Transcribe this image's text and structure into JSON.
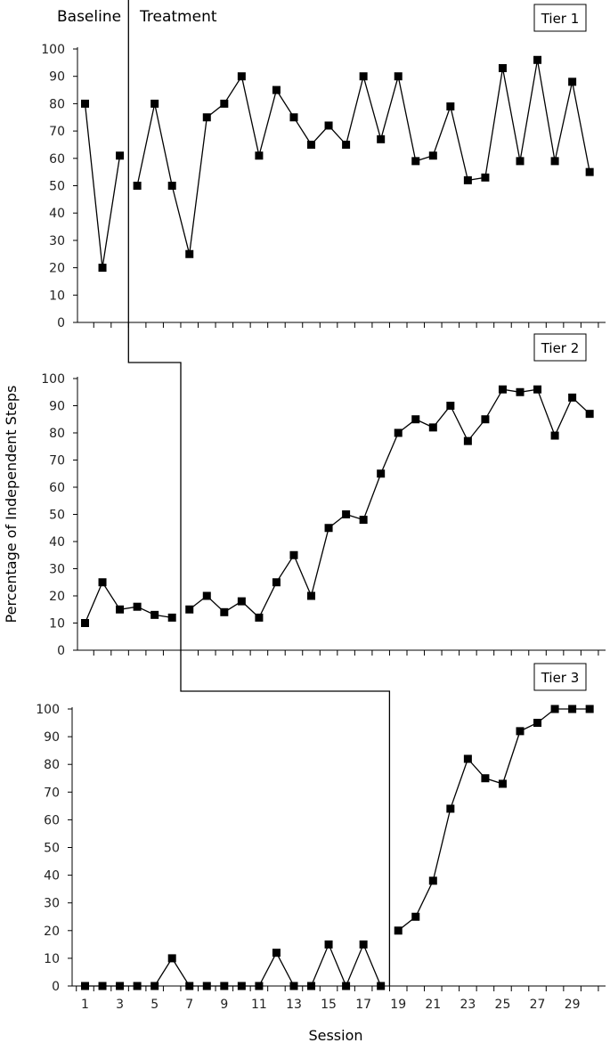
{
  "chart_data": [
    {
      "type": "line",
      "name": "tier1",
      "tier_label": "Tier 1",
      "phase_labels": [
        "Baseline",
        "Treatment"
      ],
      "ylim": [
        0,
        100
      ],
      "yticks": [
        0,
        10,
        20,
        30,
        40,
        50,
        60,
        70,
        80,
        90,
        100
      ],
      "baseline": {
        "x": [
          1,
          2,
          3
        ],
        "y": [
          80,
          20,
          61
        ]
      },
      "treatment": {
        "x": [
          4,
          5,
          6,
          7,
          8,
          9,
          10,
          11,
          12,
          13,
          14,
          15,
          16,
          17,
          18,
          19,
          20,
          21,
          22,
          23,
          24,
          25,
          26,
          27,
          28,
          29,
          30
        ],
        "y": [
          50,
          80,
          50,
          25,
          75,
          80,
          90,
          61,
          85,
          75,
          65,
          72,
          65,
          90,
          67,
          90,
          59,
          61,
          79,
          52,
          53,
          93,
          59,
          96,
          59,
          88,
          55
        ]
      },
      "phase_change_after": 3
    },
    {
      "type": "line",
      "name": "tier2",
      "tier_label": "Tier 2",
      "ylabel": "Percentage of Independent Steps",
      "ylim": [
        0,
        100
      ],
      "yticks": [
        0,
        10,
        20,
        30,
        40,
        50,
        60,
        70,
        80,
        90,
        100
      ],
      "baseline": {
        "x": [
          1,
          2,
          3,
          4,
          5,
          6
        ],
        "y": [
          10,
          25,
          15,
          16,
          13,
          12
        ]
      },
      "treatment": {
        "x": [
          7,
          8,
          9,
          10,
          11,
          12,
          13,
          14,
          15,
          16,
          17,
          18,
          19,
          20,
          21,
          22,
          23,
          24,
          25,
          26,
          27,
          28,
          29,
          30
        ],
        "y": [
          15,
          20,
          14,
          18,
          12,
          25,
          35,
          20,
          45,
          50,
          48,
          65,
          80,
          85,
          82,
          90,
          77,
          85,
          96,
          95,
          96,
          79,
          93,
          87
        ]
      },
      "phase_change_after": 6
    },
    {
      "type": "line",
      "name": "tier3",
      "tier_label": "Tier 3",
      "xlabel": "Session",
      "ylim": [
        0,
        100
      ],
      "yticks": [
        0,
        10,
        20,
        30,
        40,
        50,
        60,
        70,
        80,
        90,
        100
      ],
      "xtick_labels": [
        1,
        3,
        5,
        7,
        9,
        11,
        13,
        15,
        17,
        19,
        21,
        23,
        25,
        27,
        29
      ],
      "baseline": {
        "x": [
          1,
          2,
          3,
          4,
          5,
          6,
          7,
          8,
          9,
          10,
          11,
          12,
          13,
          14,
          15,
          16,
          17,
          18
        ],
        "y": [
          0,
          0,
          0,
          0,
          0,
          10,
          0,
          0,
          0,
          0,
          0,
          12,
          0,
          0,
          15,
          0,
          15,
          0
        ]
      },
      "treatment": {
        "x": [
          19,
          20,
          21,
          22,
          23,
          24,
          25,
          26,
          27,
          28,
          29,
          30
        ],
        "y": [
          20,
          25,
          38,
          64,
          82,
          75,
          73,
          92,
          95,
          100,
          100,
          100
        ]
      },
      "phase_change_after": 18
    }
  ]
}
